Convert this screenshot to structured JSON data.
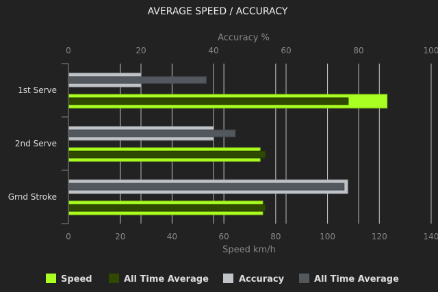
{
  "chart_data": {
    "type": "bar",
    "orientation": "horizontal",
    "title": "AVERAGE SPEED / ACCURACY",
    "categories": [
      "1st Serve",
      "2nd Serve",
      "Grnd Stroke"
    ],
    "x_bottom": {
      "label": "Speed km/h",
      "range": [
        0,
        140
      ],
      "ticks": [
        0,
        20,
        40,
        60,
        80,
        100,
        120,
        140
      ]
    },
    "x_top": {
      "label": "Accuracy %",
      "range": [
        0,
        100
      ],
      "ticks": [
        0,
        20,
        40,
        60,
        80,
        100
      ]
    },
    "grid": true,
    "legend_position": "bottom",
    "series": [
      {
        "name": "Speed",
        "axis": "bottom",
        "color": "#aaff22",
        "values": [
          123,
          74,
          75
        ]
      },
      {
        "name": "All Time Average",
        "axis": "bottom",
        "color": "#2f4a00",
        "values": [
          108,
          76,
          76
        ]
      },
      {
        "name": "Accuracy",
        "axis": "top",
        "color": "#c0c4c8",
        "values": [
          20,
          40,
          77
        ]
      },
      {
        "name": "All Time Average",
        "axis": "top",
        "color": "#53575e",
        "values": [
          38,
          46,
          76
        ]
      }
    ]
  }
}
